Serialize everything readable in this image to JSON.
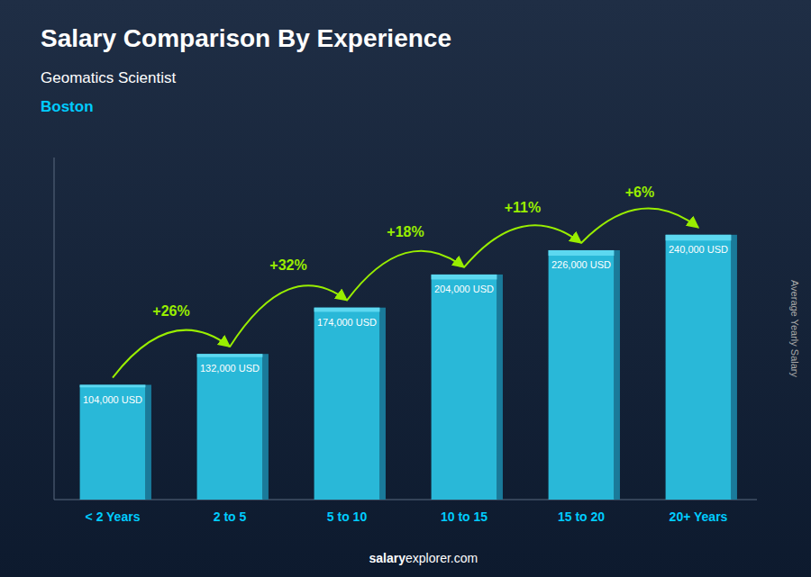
{
  "chart_data": {
    "type": "bar",
    "title": "Salary Comparison By Experience",
    "subtitle": "Geomatics Scientist",
    "ylabel": "Average Yearly Salary",
    "annotations": [
      "Boston",
      "+26%",
      "+32%",
      "+18%",
      "+11%",
      "+6%",
      "salary",
      "explorer.com"
    ],
    "categories": [
      "< 2 Years",
      "2 to 5",
      "5 to 10",
      "10 to 15",
      "15 to 20",
      "20+ Years"
    ],
    "values": [
      104000,
      132000,
      174000,
      204000,
      226000,
      240000
    ],
    "value_labels": [
      "104,000 USD",
      "132,000 USD",
      "174,000 USD",
      "204,000 USD",
      "226,000 USD",
      "240,000 USD"
    ],
    "data_labels": true,
    "color": "#29b8d8",
    "ylim": [
      0,
      310000
    ],
    "tick_labels": "x",
    "grid": false
  }
}
